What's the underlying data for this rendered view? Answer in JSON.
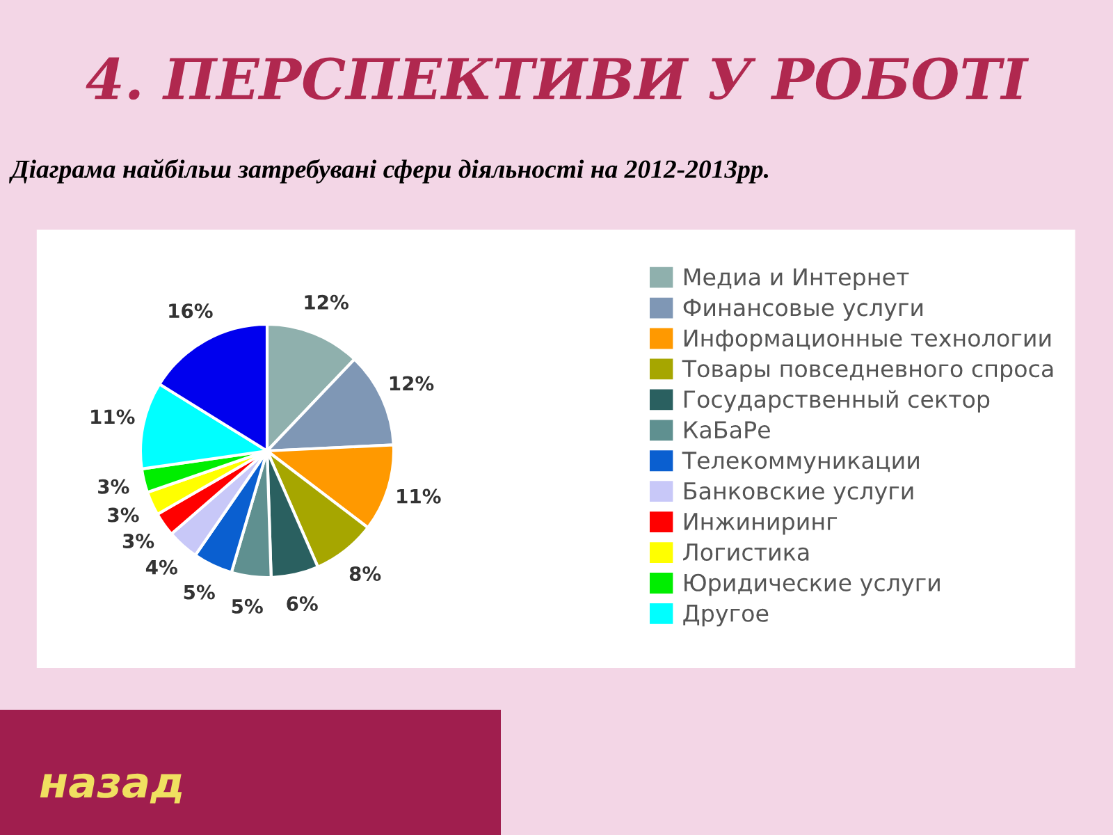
{
  "chart_data": {
    "type": "pie",
    "title": "4. ПЕРСПЕКТИВИ У РОБОТІ",
    "subtitle": "Діаграма найбільш затребувані сфери діяльності на 2012-2013рр.",
    "categories": [
      "Медиа и Интернет",
      "Финансовые услуги",
      "Информационные технологии",
      "Товары повседневного спроса",
      "Государственный сектор",
      "КаБаРе",
      "Телекоммуникации",
      "Банковские услуги",
      "Инжиниринг",
      "Логистика",
      "Юридические услуги",
      "Другое",
      null
    ],
    "values": [
      12,
      12,
      11,
      8,
      6,
      5,
      5,
      4,
      3,
      3,
      3,
      11,
      16
    ],
    "value_labels": [
      "12%",
      "12%",
      "11%",
      "8%",
      "6%",
      "5%",
      "5%",
      "4%",
      "3%",
      "3%",
      "3%",
      "11%",
      "16%"
    ],
    "colors": [
      "#8fb0ad",
      "#7f97b5",
      "#ff9900",
      "#a6a600",
      "#2a6060",
      "#5f9090",
      "#0a5fd0",
      "#c8c8f8",
      "#ff0000",
      "#ffff00",
      "#00ee00",
      "#00ffff",
      "#0000ee"
    ],
    "legend": "right",
    "annotations": [
      "назад"
    ]
  }
}
